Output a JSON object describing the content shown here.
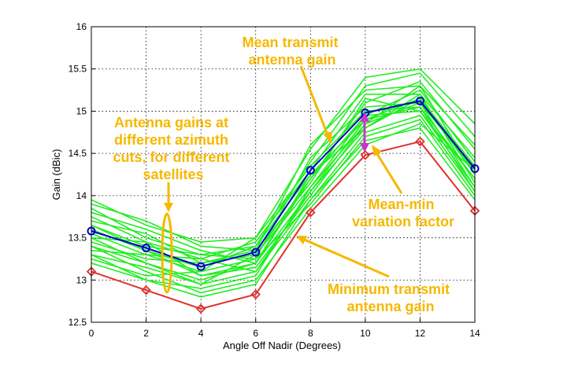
{
  "chart_data": {
    "type": "line",
    "title": "",
    "xlabel": "Angle Off Nadir (Degrees)",
    "ylabel": "Gain (dBic)",
    "xlim": [
      0,
      14
    ],
    "ylim": [
      12.5,
      16
    ],
    "x_ticks": [
      "0",
      "2",
      "4",
      "6",
      "8",
      "10",
      "12",
      "14"
    ],
    "y_ticks": [
      "12.5",
      "13",
      "13.5",
      "14",
      "14.5",
      "15",
      "15.5",
      "16"
    ],
    "grid": "dotted",
    "x": [
      0,
      2,
      4,
      6,
      8,
      10,
      12,
      14
    ],
    "series": [
      {
        "role": "mean",
        "color": "#0000cc",
        "marker": "circle",
        "values": [
          13.58,
          13.38,
          13.16,
          13.33,
          14.3,
          14.98,
          15.12,
          14.32
        ]
      },
      {
        "role": "minimum",
        "color": "#e03030",
        "marker": "diamond",
        "values": [
          13.1,
          12.88,
          12.66,
          12.83,
          13.8,
          14.48,
          14.64,
          13.82
        ]
      }
    ],
    "green_curves": {
      "color": "#22ee22",
      "count": 20,
      "values": [
        [
          13.95,
          13.65,
          13.45,
          13.5,
          14.55,
          15.4,
          15.5,
          14.85
        ],
        [
          13.9,
          13.7,
          13.4,
          13.35,
          14.6,
          15.25,
          15.3,
          14.6
        ],
        [
          13.85,
          13.5,
          13.3,
          13.4,
          14.4,
          15.3,
          15.45,
          14.7
        ],
        [
          13.8,
          13.6,
          13.35,
          13.2,
          14.2,
          15.1,
          15.35,
          14.55
        ],
        [
          13.75,
          13.45,
          13.25,
          13.45,
          14.3,
          15.2,
          15.2,
          14.45
        ],
        [
          13.7,
          13.55,
          13.2,
          13.3,
          14.1,
          14.95,
          15.25,
          14.4
        ],
        [
          13.65,
          13.4,
          13.3,
          13.25,
          14.45,
          15.05,
          15.1,
          14.3
        ],
        [
          13.6,
          13.35,
          13.15,
          13.4,
          14.25,
          14.9,
          15.15,
          14.35
        ],
        [
          13.55,
          13.3,
          13.1,
          13.5,
          14.35,
          15.0,
          15.05,
          14.2
        ],
        [
          13.5,
          13.45,
          13.05,
          13.15,
          14.0,
          14.85,
          15.3,
          14.25
        ],
        [
          13.45,
          13.25,
          13.2,
          13.35,
          14.15,
          15.15,
          15.0,
          14.1
        ],
        [
          13.4,
          13.2,
          13.0,
          13.2,
          14.05,
          14.8,
          15.2,
          14.15
        ],
        [
          13.35,
          13.3,
          13.25,
          13.1,
          13.95,
          14.75,
          14.95,
          14.05
        ],
        [
          13.3,
          13.15,
          12.95,
          13.3,
          14.2,
          14.95,
          15.0,
          14.2
        ],
        [
          13.25,
          13.05,
          13.1,
          13.25,
          13.9,
          14.7,
          14.9,
          14.0
        ],
        [
          13.2,
          13.0,
          12.9,
          13.05,
          14.1,
          14.85,
          15.1,
          14.1
        ],
        [
          13.4,
          13.1,
          12.85,
          13.0,
          13.85,
          14.6,
          14.85,
          14.3
        ],
        [
          13.3,
          13.0,
          12.8,
          12.95,
          13.95,
          14.65,
          14.8,
          13.95
        ],
        [
          13.5,
          13.2,
          12.95,
          13.1,
          14.05,
          14.9,
          15.05,
          14.05
        ],
        [
          13.65,
          13.35,
          13.05,
          13.2,
          14.25,
          14.8,
          15.15,
          14.25
        ]
      ]
    }
  },
  "annotations": {
    "mean_gain": [
      "Mean transmit",
      "antenna gain"
    ],
    "azimuth_cuts": [
      "Antenna gains at",
      "different azimuth",
      "cuts, for different",
      "satellites"
    ],
    "mean_min": [
      "Mean-min",
      "variation factor"
    ],
    "minimum_gain": [
      "Minimum transmit",
      "antenna gain"
    ],
    "annotation_color": "#f5b800",
    "marker_color": "#cc33cc"
  }
}
